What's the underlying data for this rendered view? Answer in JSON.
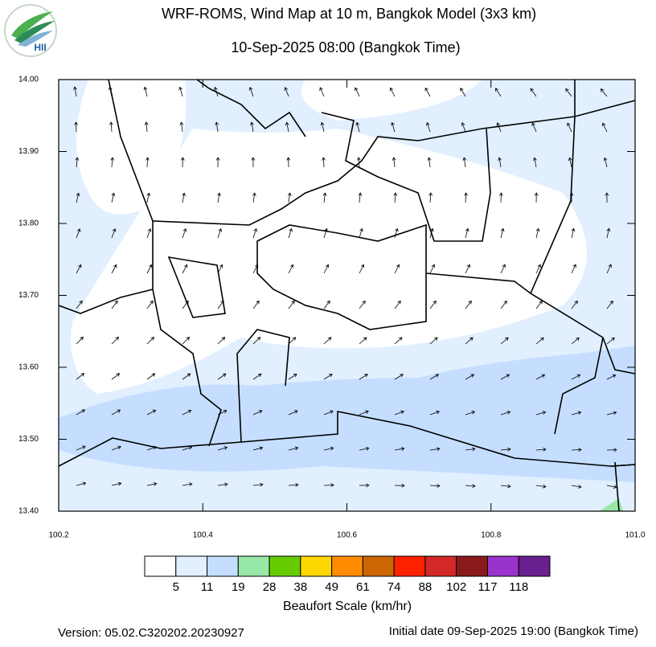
{
  "header": {
    "title": "WRF-ROMS, Wind Map at 10 m, Bangkok Model (3x3 km)",
    "subtitle": "10-Sep-2025 08:00 (Bangkok Time)"
  },
  "logo": {
    "text": "HII"
  },
  "map": {
    "xlim": [
      100.2,
      101.0
    ],
    "ylim": [
      13.4,
      14.0
    ],
    "xticks": [
      100.2,
      100.4,
      100.6,
      100.8,
      {
        "value": 101,
        "label": "101.0"
      }
    ],
    "yticks": [
      {
        "value": 13.4,
        "label": "13.40"
      },
      {
        "value": 13.5,
        "label": "13.50"
      },
      {
        "value": 13.6,
        "label": "13.60"
      },
      {
        "value": 13.7,
        "label": "13.70"
      },
      {
        "value": 13.8,
        "label": "13.80"
      },
      {
        "value": 13.9,
        "label": "13.90"
      },
      {
        "value": 14,
        "label": "14.00"
      }
    ]
  },
  "colorbar": {
    "title": "Beaufort Scale (km/hr)",
    "colors": [
      "#ffffff",
      "#e1efff",
      "#c5deff",
      "#98e8a8",
      "#66cc00",
      "#ffd700",
      "#ff8c00",
      "#cc6600",
      "#ff2200",
      "#d22828",
      "#8b1a1a",
      "#9933cc",
      "#6a1f8f"
    ],
    "labels": [
      5,
      11,
      19,
      28,
      38,
      49,
      61,
      74,
      88,
      102,
      117,
      118
    ]
  },
  "footer": {
    "version": "Version: 05.02.C320202.20230927",
    "initial": "Initial date 09-Sep-2025 19:00 (Bangkok Time)"
  }
}
